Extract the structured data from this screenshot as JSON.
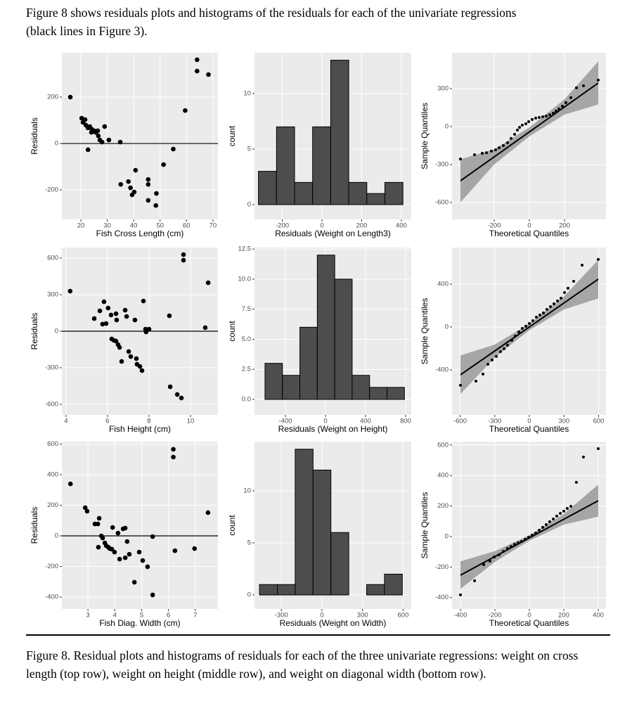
{
  "intro": "Figure 8 shows residuals plots and histograms of the residuals for each of the univariate regressions (black lines in Figure 3).",
  "caption": "Figure 8. Residual plots and histograms of residuals for each of the three univariate regressions: weight on cross length (top row), weight on height (middle row), and weight on diagonal width (bottom row).",
  "chart_data": [
    {
      "type": "scatter",
      "xlabel": "Fish Cross Length (cm)",
      "ylabel": "Residuals",
      "color": "#000000",
      "grid": true,
      "hline": 0,
      "x": [
        16.0,
        20.3,
        21.6,
        20.8,
        21.9,
        22.7,
        23.4,
        24.2,
        25.0,
        24.0,
        26.4,
        25.6,
        26.6,
        27.2,
        28.0,
        29.0,
        30.6,
        22.7,
        34.9,
        35.1,
        38.0,
        38.8,
        39.4,
        40.7,
        40.2,
        45.5,
        45.5,
        45.5,
        48.6,
        48.4,
        51.3,
        55.0,
        59.5,
        64.0,
        64.0,
        68.3
      ],
      "values": [
        200,
        109,
        103,
        91,
        79,
        67,
        73,
        61,
        55,
        48,
        55,
        48,
        33,
        15,
        6,
        73,
        15,
        -27,
        6,
        -176,
        -164,
        -191,
        -221,
        -115,
        -209,
        -155,
        -176,
        -245,
        -215,
        -267,
        -91,
        -24,
        142,
        361,
        312,
        297
      ],
      "xlim": [
        12.8,
        71.9
      ],
      "xticks": [
        20,
        30,
        40,
        50,
        60,
        70
      ],
      "ylim": [
        -327,
        391
      ],
      "yticks": [
        -200,
        0,
        200
      ]
    },
    {
      "type": "histogram",
      "xlabel": "Residuals (Weight on Length3)",
      "ylabel": "count",
      "color": "#4d4d4d",
      "edgecolor": "#000000",
      "grid": true,
      "bins": [
        -320,
        -229,
        -138,
        -47,
        44,
        135,
        226,
        317,
        408
      ],
      "values": [
        3,
        7,
        2,
        7,
        13,
        2,
        1,
        2
      ],
      "xlim": [
        -340,
        450
      ],
      "xticks": [
        -200,
        0,
        200,
        400
      ],
      "ylim": [
        -1.33,
        13.67
      ],
      "yticks": [
        0,
        5,
        10
      ]
    },
    {
      "type": "qq",
      "xlabel": "Theoretical Quantiles",
      "ylabel": "Sample Quantiles",
      "color": "#000000",
      "grid": true,
      "x": [
        -392,
        -312,
        -268,
        -244,
        -216,
        -192,
        -172,
        -148,
        -124,
        -104,
        -84,
        -68,
        -56,
        -40,
        -20,
        -4,
        16,
        36,
        56,
        76,
        96,
        116,
        136,
        152,
        168,
        188,
        208,
        236,
        268,
        308,
        392
      ],
      "values": [
        -256,
        -222,
        -211,
        -206,
        -194,
        -183,
        -167,
        -150,
        -128,
        -94,
        -61,
        -28,
        -6,
        11,
        22,
        39,
        56,
        67,
        72,
        78,
        83,
        94,
        106,
        122,
        139,
        161,
        189,
        228,
        306,
        322,
        367
      ],
      "fit": {
        "x": [
          -392,
          -200,
          0,
          200,
          392
        ],
        "values": [
          -428,
          -239,
          -42,
          155,
          344
        ],
        "lower": [
          -598,
          -299,
          -77,
          95,
          174
        ],
        "upper": [
          -258,
          -179,
          -7,
          215,
          514
        ],
        "color": "#000000",
        "band_color": "#a6a6a6"
      },
      "xlim": [
        -440,
        436
      ],
      "xticks": [
        -200,
        0,
        200
      ],
      "ylim": [
        -733,
        583
      ],
      "yticks": [
        -600,
        -300,
        0,
        300
      ]
    },
    {
      "type": "scatter",
      "xlabel": "Fish Height (cm)",
      "ylabel": "Residuals",
      "color": "#000000",
      "grid": true,
      "hline": 0,
      "x": [
        4.2,
        5.36,
        5.63,
        5.83,
        5.76,
        5.93,
        6.03,
        6.17,
        6.2,
        6.31,
        6.41,
        6.51,
        6.58,
        6.68,
        6.41,
        6.44,
        6.85,
        6.92,
        7.02,
        7.12,
        7.32,
        7.39,
        7.42,
        7.56,
        7.66,
        7.73,
        7.83,
        7.86,
        8.0,
        8.98,
        9.02,
        9.36,
        9.56,
        9.66,
        9.66,
        10.71,
        10.85
      ],
      "values": [
        329,
        104,
        167,
        242,
        58,
        63,
        190,
        133,
        -63,
        -75,
        -81,
        -110,
        -133,
        -248,
        144,
        92,
        173,
        121,
        -167,
        -208,
        92,
        -225,
        -271,
        -289,
        -323,
        248,
        17,
        -6,
        17,
        127,
        -456,
        -519,
        -548,
        629,
        583,
        29,
        398
      ],
      "xlim": [
        3.8,
        11.32
      ],
      "xticks": [
        4,
        6,
        8,
        10
      ],
      "ylim": [
        -687,
        687
      ],
      "yticks": [
        -600,
        -300,
        0,
        300,
        600
      ]
    },
    {
      "type": "histogram",
      "xlabel": "Residuals (Weight on Height)",
      "ylabel": "count",
      "color": "#4d4d4d",
      "edgecolor": "#000000",
      "grid": true,
      "bins": [
        -604,
        -430,
        -256,
        -82,
        92,
        266,
        440,
        614,
        788
      ],
      "values": [
        3,
        2,
        6,
        12,
        10,
        2,
        1,
        1
      ],
      "xlim": [
        -709,
        856
      ],
      "xticks": [
        -400,
        0,
        400,
        800
      ],
      "ylim": [
        -1.29,
        12.63
      ],
      "yticks": [
        {
          "value": 0,
          "label": "0.0"
        },
        2.5,
        {
          "value": 5,
          "label": "5.0"
        },
        7.5,
        {
          "value": 10,
          "label": "10.0"
        },
        12.5
      ]
    },
    {
      "type": "qq",
      "xlabel": "Theoretical Quantiles",
      "ylabel": "Sample Quantiles",
      "color": "#000000",
      "grid": true,
      "x": [
        -597,
        -463,
        -402,
        -359,
        -323,
        -286,
        -250,
        -219,
        -189,
        -152,
        -122,
        -91,
        -61,
        -30,
        0,
        30,
        61,
        91,
        122,
        152,
        183,
        213,
        244,
        274,
        305,
        335,
        384,
        457,
        597
      ],
      "values": [
        -544,
        -505,
        -439,
        -348,
        -308,
        -275,
        -230,
        -203,
        -170,
        -125,
        -85,
        -46,
        -13,
        7,
        33,
        59,
        92,
        111,
        131,
        164,
        190,
        216,
        243,
        269,
        321,
        361,
        426,
        577,
        630
      ],
      "fit": {
        "x": [
          -597,
          -300,
          0,
          300,
          597
        ],
        "values": [
          -446,
          -224,
          0,
          224,
          446
        ],
        "lower": [
          -626,
          -284,
          -30,
          164,
          266
        ],
        "upper": [
          -266,
          -164,
          30,
          284,
          626
        ],
        "color": "#000000",
        "band_color": "#a6a6a6"
      },
      "xlim": [
        -670,
        664
      ],
      "xticks": [
        -600,
        -300,
        0,
        300,
        600
      ],
      "ylim": [
        -820,
        741
      ],
      "yticks": [
        -400,
        0,
        400
      ]
    },
    {
      "type": "scatter",
      "xlabel": "Fish Diag. Width (cm)",
      "ylabel": "Residuals",
      "color": "#000000",
      "grid": true,
      "hline": 0,
      "x": [
        2.35,
        2.9,
        2.97,
        3.26,
        3.37,
        3.42,
        3.39,
        3.5,
        3.55,
        3.63,
        3.68,
        3.76,
        3.81,
        3.89,
        3.92,
        3.99,
        4.12,
        4.18,
        4.31,
        4.39,
        4.39,
        4.46,
        4.54,
        4.73,
        4.91,
        5.04,
        5.22,
        5.41,
        5.41,
        6.18,
        6.18,
        6.24,
        6.97,
        7.47
      ],
      "values": [
        340,
        184,
        161,
        78,
        78,
        115,
        -74,
        0,
        -14,
        -46,
        -64,
        -74,
        -83,
        -87,
        55,
        -106,
        18,
        -152,
        46,
        51,
        -143,
        -37,
        -120,
        -303,
        -106,
        -161,
        -202,
        -5,
        -386,
        566,
        515,
        -97,
        -83,
        152
      ],
      "xlim": [
        2.03,
        7.84
      ],
      "xticks": [
        3,
        4,
        5,
        6,
        7
      ],
      "ylim": [
        -478,
        616
      ],
      "yticks": [
        -400,
        -200,
        0,
        200,
        400,
        600
      ]
    },
    {
      "type": "histogram",
      "xlabel": "Residuals (Weight on Width)",
      "ylabel": "count",
      "color": "#4d4d4d",
      "edgecolor": "#000000",
      "grid": true,
      "bins": [
        -462,
        -330,
        -198,
        -66,
        66,
        198,
        330,
        462,
        594
      ],
      "values": [
        1,
        1,
        14,
        12,
        6,
        0,
        1,
        2
      ],
      "xlim": [
        -499,
        660
      ],
      "xticks": [
        -300,
        0,
        300,
        600
      ],
      "ylim": [
        -1.35,
        14.73
      ],
      "yticks": [
        0,
        5,
        10
      ]
    },
    {
      "type": "qq",
      "xlabel": "Theoretical Quantiles",
      "ylabel": "Sample Quantiles",
      "color": "#000000",
      "grid": true,
      "x": [
        -400,
        -318,
        -265,
        -229,
        -204,
        -176,
        -151,
        -127,
        -106,
        -86,
        -65,
        -45,
        -24,
        -4,
        16,
        37,
        57,
        78,
        98,
        118,
        139,
        159,
        180,
        200,
        220,
        241,
        273,
        314,
        400
      ],
      "values": [
        -382,
        -290,
        -184,
        -161,
        -134,
        -120,
        -97,
        -78,
        -65,
        -51,
        -41,
        -32,
        -18,
        -5,
        9,
        23,
        41,
        60,
        78,
        97,
        115,
        134,
        152,
        166,
        184,
        198,
        355,
        521,
        576
      ],
      "fit": {
        "x": [
          -400,
          -200,
          0,
          200,
          400
        ],
        "values": [
          -253,
          -131,
          -9,
          113,
          235
        ],
        "lower": [
          -343,
          -166,
          -27,
          78,
          130
        ],
        "upper": [
          -163,
          -96,
          9,
          148,
          340
        ],
        "color": "#000000",
        "band_color": "#a6a6a6"
      },
      "xlim": [
        -449,
        445
      ],
      "xticks": [
        -400,
        -200,
        0,
        200,
        400
      ],
      "ylim": [
        -475,
        622
      ],
      "yticks": [
        -400,
        -200,
        0,
        200,
        400,
        600
      ]
    }
  ]
}
